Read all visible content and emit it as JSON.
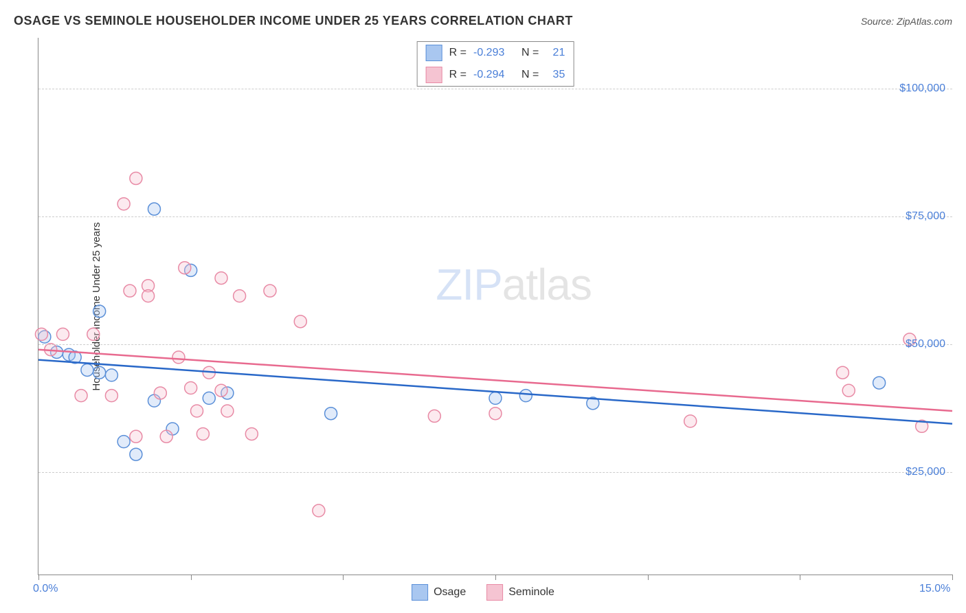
{
  "header": {
    "title": "OSAGE VS SEMINOLE HOUSEHOLDER INCOME UNDER 25 YEARS CORRELATION CHART",
    "source_prefix": "Source: ",
    "source_name": "ZipAtlas.com"
  },
  "chart": {
    "type": "scatter",
    "ylabel": "Householder Income Under 25 years",
    "xlim": [
      0,
      15
    ],
    "ylim": [
      5000,
      110000
    ],
    "x_ticks": [
      0,
      2.5,
      5,
      7.5,
      10,
      12.5,
      15
    ],
    "x_tick_labels": {
      "0": "0.0%",
      "15": "15.0%"
    },
    "y_gridlines": [
      25000,
      50000,
      75000,
      100000
    ],
    "y_tick_labels": {
      "25000": "$25,000",
      "50000": "$50,000",
      "75000": "$75,000",
      "100000": "$100,000"
    },
    "background_color": "#ffffff",
    "grid_color": "#cccccc",
    "marker_radius": 9,
    "marker_stroke_width": 1.5,
    "marker_fill_opacity": 0.35,
    "line_width": 2.5,
    "watermark": {
      "part1": "ZIP",
      "part2": "atlas"
    },
    "series": [
      {
        "name": "Osage",
        "color_fill": "#a9c7f0",
        "color_stroke": "#5a8fd8",
        "line_color": "#2968c8",
        "R": "-0.293",
        "N": "21",
        "trend": {
          "x1": 0,
          "y1": 47000,
          "x2": 15,
          "y2": 34500
        },
        "points": [
          [
            0.1,
            51500
          ],
          [
            0.3,
            48500
          ],
          [
            0.5,
            48000
          ],
          [
            0.6,
            47500
          ],
          [
            0.8,
            45000
          ],
          [
            1.0,
            56500
          ],
          [
            1.0,
            44500
          ],
          [
            1.2,
            44000
          ],
          [
            1.4,
            31000
          ],
          [
            1.6,
            28500
          ],
          [
            1.9,
            76500
          ],
          [
            1.9,
            39000
          ],
          [
            2.2,
            33500
          ],
          [
            2.5,
            64500
          ],
          [
            2.8,
            39500
          ],
          [
            3.1,
            40500
          ],
          [
            4.8,
            36500
          ],
          [
            7.5,
            39500
          ],
          [
            8.0,
            40000
          ],
          [
            9.1,
            38500
          ],
          [
            13.8,
            42500
          ]
        ]
      },
      {
        "name": "Seminole",
        "color_fill": "#f5c4d2",
        "color_stroke": "#e88aa5",
        "line_color": "#e86a8f",
        "R": "-0.294",
        "N": "35",
        "trend": {
          "x1": 0,
          "y1": 49000,
          "x2": 15,
          "y2": 37000
        },
        "points": [
          [
            0.05,
            52000
          ],
          [
            0.2,
            49000
          ],
          [
            0.4,
            52000
          ],
          [
            0.7,
            40000
          ],
          [
            0.9,
            52000
          ],
          [
            1.2,
            40000
          ],
          [
            1.4,
            77500
          ],
          [
            1.5,
            60500
          ],
          [
            1.6,
            82500
          ],
          [
            1.8,
            61500
          ],
          [
            1.6,
            32000
          ],
          [
            1.8,
            59500
          ],
          [
            2.0,
            40500
          ],
          [
            2.1,
            32000
          ],
          [
            2.3,
            47500
          ],
          [
            2.4,
            65000
          ],
          [
            2.5,
            41500
          ],
          [
            2.6,
            37000
          ],
          [
            2.7,
            32500
          ],
          [
            2.8,
            44500
          ],
          [
            3.0,
            63000
          ],
          [
            3.0,
            41000
          ],
          [
            3.1,
            37000
          ],
          [
            3.3,
            59500
          ],
          [
            3.5,
            32500
          ],
          [
            3.8,
            60500
          ],
          [
            4.3,
            54500
          ],
          [
            4.6,
            17500
          ],
          [
            6.5,
            36000
          ],
          [
            7.5,
            36500
          ],
          [
            10.7,
            35000
          ],
          [
            13.2,
            44500
          ],
          [
            13.3,
            41000
          ],
          [
            14.3,
            51000
          ],
          [
            14.5,
            34000
          ]
        ]
      }
    ]
  },
  "legend_top": {
    "r_label": "R =",
    "n_label": "N ="
  }
}
